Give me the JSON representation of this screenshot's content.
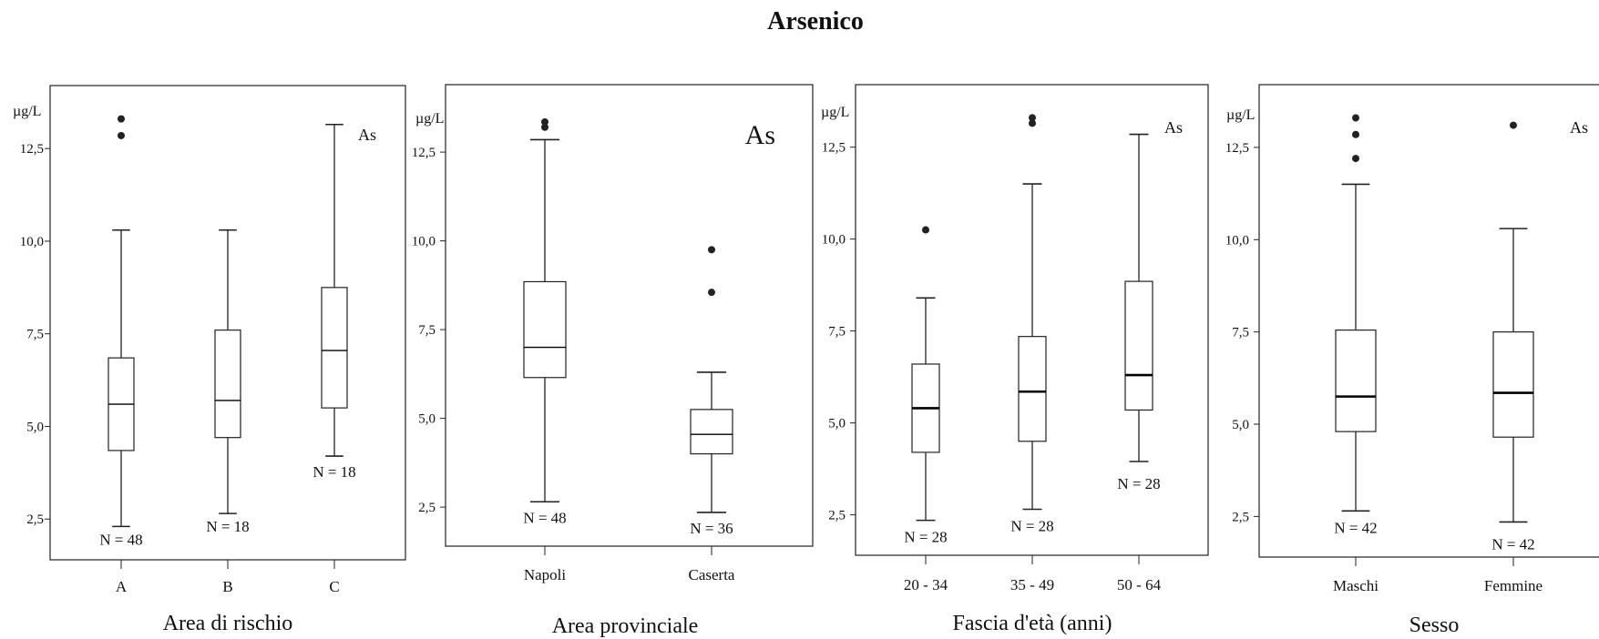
{
  "title": "Arsenico",
  "chart_data": [
    {
      "type": "box",
      "unit": "µg/L",
      "tag": "As",
      "xlabel": "Area di rischio",
      "yticks": [
        "2,5",
        "5,0",
        "7,5",
        "10,0",
        "12,5"
      ],
      "ytick_values": [
        2.5,
        5.0,
        7.5,
        10.0,
        12.5
      ],
      "ylim": [
        1.4,
        14.2
      ],
      "categories": [
        "A",
        "B",
        "C"
      ],
      "boxes": [
        {
          "category": "A",
          "min": 2.3,
          "q1": 4.35,
          "median": 5.6,
          "q3": 6.85,
          "max": 10.3,
          "outliers": [
            12.85,
            13.3
          ],
          "n_label": "N = 48"
        },
        {
          "category": "B",
          "min": 2.65,
          "q1": 4.7,
          "median": 5.7,
          "q3": 7.6,
          "max": 10.3,
          "outliers": [],
          "n_label": "N = 18"
        },
        {
          "category": "C",
          "min": 4.2,
          "q1": 5.5,
          "median": 7.05,
          "q3": 8.75,
          "max": 13.15,
          "outliers": [],
          "n_label": "N = 18"
        }
      ]
    },
    {
      "type": "box",
      "unit": "µg/L",
      "tag": "As",
      "xlabel": "Area provinciale",
      "yticks": [
        "2,5",
        "5,0",
        "7,5",
        "10,0",
        "12,5"
      ],
      "ytick_values": [
        2.5,
        5.0,
        7.5,
        10.0,
        12.5
      ],
      "ylim": [
        1.4,
        14.4
      ],
      "categories": [
        "Napoli",
        "Caserta"
      ],
      "boxes": [
        {
          "category": "Napoli",
          "min": 2.65,
          "q1": 6.15,
          "median": 7.0,
          "q3": 8.85,
          "max": 12.85,
          "outliers": [
            13.2,
            13.35
          ],
          "n_label": "N = 48"
        },
        {
          "category": "Caserta",
          "min": 2.35,
          "q1": 4.0,
          "median": 4.55,
          "q3": 5.25,
          "max": 6.3,
          "outliers": [
            8.55,
            9.75
          ],
          "n_label": "N = 36"
        }
      ]
    },
    {
      "type": "box",
      "unit": "µg/L",
      "tag": "As",
      "xlabel": "Fascia d'età (anni)",
      "yticks": [
        "2,5",
        "5,0",
        "7,5",
        "10,0",
        "12,5"
      ],
      "ytick_values": [
        2.5,
        5.0,
        7.5,
        10.0,
        12.5
      ],
      "ylim": [
        1.4,
        14.2
      ],
      "categories": [
        "20 - 34",
        "35 - 49",
        "50 - 64"
      ],
      "boxes": [
        {
          "category": "20 - 34",
          "min": 2.35,
          "q1": 4.2,
          "median": 5.4,
          "q3": 6.6,
          "max": 8.4,
          "outliers": [
            10.25
          ],
          "n_label": "N = 28"
        },
        {
          "category": "35 - 49",
          "min": 2.65,
          "q1": 4.5,
          "median": 5.85,
          "q3": 7.35,
          "max": 11.5,
          "outliers": [
            13.15,
            13.3
          ],
          "n_label": "N = 28"
        },
        {
          "category": "50 - 64",
          "min": 3.95,
          "q1": 5.35,
          "median": 6.3,
          "q3": 8.85,
          "max": 12.85,
          "outliers": [],
          "n_label": "N = 28"
        }
      ]
    },
    {
      "type": "box",
      "unit": "µg/L",
      "tag": "As",
      "xlabel": "Sesso",
      "yticks": [
        "2,5",
        "5,0",
        "7,5",
        "10,0",
        "12,5"
      ],
      "ytick_values": [
        2.5,
        5.0,
        7.5,
        10.0,
        12.5
      ],
      "ylim": [
        1.4,
        14.2
      ],
      "categories": [
        "Maschi",
        "Femmine"
      ],
      "boxes": [
        {
          "category": "Maschi",
          "min": 2.65,
          "q1": 4.8,
          "median": 5.75,
          "q3": 7.55,
          "max": 11.5,
          "outliers": [
            12.2,
            12.85,
            13.3
          ],
          "n_label": "N = 42"
        },
        {
          "category": "Femmine",
          "min": 2.35,
          "q1": 4.65,
          "median": 5.85,
          "q3": 7.5,
          "max": 10.3,
          "outliers": [
            13.1
          ],
          "n_label": "N = 42"
        }
      ]
    }
  ]
}
